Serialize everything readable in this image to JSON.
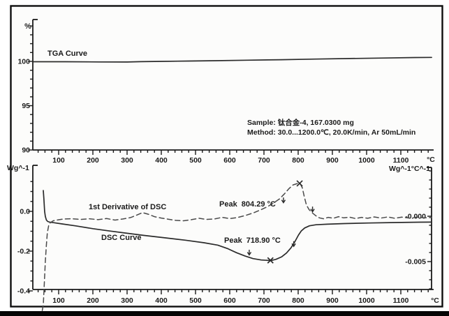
{
  "colors": {
    "frame": "#0d0d0d",
    "axis": "#1a1a1a",
    "curve": "#2b2b2b",
    "derivative": "#4a4a4a",
    "text": "#1a1a1a",
    "background": "#fcfcfb",
    "bottom_bar": "#050505"
  },
  "annotations": {
    "sample_line": "Sample: 钛合金-4, 167.0300 mg",
    "method_line": "Method: 30.0...1200.0℃, 20.0K/min, Ar 50mL/min"
  },
  "chart_data": [
    {
      "type": "line",
      "panel": "top",
      "title": "TGA Curve",
      "xlabel": "°C",
      "ylabel": "%",
      "x_range": [
        25,
        1190
      ],
      "ylim": [
        90,
        104.7
      ],
      "grid": false,
      "x_ticks_major": [
        100,
        200,
        300,
        400,
        500,
        600,
        700,
        800,
        900,
        1000,
        1100
      ],
      "x_tick_minor_step": 20,
      "y_ticks": [
        {
          "v": 100,
          "label": "100"
        },
        {
          "v": 95,
          "label": "95"
        },
        {
          "v": 90,
          "label": "90"
        }
      ],
      "y_tick_minor_step": 1,
      "series": [
        {
          "name": "TGA",
          "units": "%",
          "points": [
            [
              25,
              99.96
            ],
            [
              120,
              99.96
            ],
            [
              220,
              99.94
            ],
            [
              300,
              99.93
            ],
            [
              340,
              99.97
            ],
            [
              400,
              100.0
            ],
            [
              480,
              100.04
            ],
            [
              560,
              100.08
            ],
            [
              650,
              100.13
            ],
            [
              750,
              100.19
            ],
            [
              850,
              100.26
            ],
            [
              950,
              100.32
            ],
            [
              1050,
              100.38
            ],
            [
              1140,
              100.43
            ],
            [
              1190,
              100.45
            ]
          ]
        }
      ]
    },
    {
      "type": "line",
      "panel": "bottom",
      "xlabel": "°C",
      "ylabel_left": "Wg^-1",
      "ylabel_right": "Wg^-1°C^-1",
      "x_range": [
        25,
        1190
      ],
      "ylim_left": [
        -0.4,
        0.232
      ],
      "ylim_right": [
        -0.00808,
        0.0054
      ],
      "grid": false,
      "x_ticks_major": [
        100,
        200,
        300,
        400,
        500,
        600,
        700,
        800,
        900,
        1000,
        1100
      ],
      "x_tick_minor_step": 20,
      "y_ticks_left": [
        {
          "v": 0,
          "label": "0.0"
        },
        {
          "v": -0.2,
          "label": "-0.2"
        },
        {
          "v": -0.4,
          "label": "-0.4"
        }
      ],
      "y_ticks_right": [
        {
          "v": 0,
          "label": "-0.000"
        },
        {
          "v": -0.005,
          "label": "-0.005"
        }
      ],
      "series": [
        {
          "name": "DSC Curve",
          "axis": "left",
          "style": "solid",
          "points": [
            [
              55,
              0.105
            ],
            [
              57,
              0.06
            ],
            [
              59,
              0.0
            ],
            [
              61,
              -0.025
            ],
            [
              64,
              -0.043
            ],
            [
              68,
              -0.051
            ],
            [
              74,
              -0.0545
            ],
            [
              85,
              -0.057
            ],
            [
              110,
              -0.063
            ],
            [
              150,
              -0.073
            ],
            [
              200,
              -0.087
            ],
            [
              250,
              -0.099
            ],
            [
              300,
              -0.11
            ],
            [
              350,
              -0.121
            ],
            [
              410,
              -0.133
            ],
            [
              470,
              -0.145
            ],
            [
              525,
              -0.158
            ],
            [
              565,
              -0.17
            ],
            [
              595,
              -0.188
            ],
            [
              620,
              -0.208
            ],
            [
              645,
              -0.225
            ],
            [
              668,
              -0.2375
            ],
            [
              692,
              -0.2445
            ],
            [
              712,
              -0.2465
            ],
            [
              722,
              -0.2465
            ],
            [
              735,
              -0.2415
            ],
            [
              752,
              -0.2285
            ],
            [
              766,
              -0.2095
            ],
            [
              779,
              -0.1835
            ],
            [
              791,
              -0.1505
            ],
            [
              801,
              -0.119
            ],
            [
              809,
              -0.0985
            ],
            [
              819,
              -0.0835
            ],
            [
              833,
              -0.0725
            ],
            [
              852,
              -0.0675
            ],
            [
              885,
              -0.0645
            ],
            [
              935,
              -0.0615
            ],
            [
              1005,
              -0.0585
            ],
            [
              1085,
              -0.056
            ],
            [
              1155,
              -0.0545
            ],
            [
              1190,
              -0.054
            ]
          ]
        },
        {
          "name": "1st Derivative of DSC",
          "axis": "right",
          "style": "dashed",
          "points": [
            [
              52,
              -0.0104
            ],
            [
              55,
              -0.0098
            ],
            [
              58,
              -0.0075
            ],
            [
              61,
              -0.005
            ],
            [
              64,
              -0.0032
            ],
            [
              67,
              -0.0018
            ],
            [
              71,
              -0.001
            ],
            [
              76,
              -0.0007
            ],
            [
              84,
              -0.0005
            ],
            [
              95,
              -0.00042
            ],
            [
              115,
              -0.0003
            ],
            [
              140,
              -0.00028
            ],
            [
              165,
              -0.00035
            ],
            [
              190,
              -0.00028
            ],
            [
              215,
              -0.00038
            ],
            [
              240,
              -0.00025
            ],
            [
              265,
              -0.00042
            ],
            [
              288,
              -0.0003
            ],
            [
              310,
              -0.00015
            ],
            [
              328,
              0.00012
            ],
            [
              345,
              0.0004
            ],
            [
              362,
              0.00022
            ],
            [
              380,
              -5e-05
            ],
            [
              400,
              -0.0002
            ],
            [
              420,
              -0.00032
            ],
            [
              442,
              -0.00045
            ],
            [
              465,
              -0.0005
            ],
            [
              488,
              -0.00038
            ],
            [
              510,
              -0.00022
            ],
            [
              532,
              -0.00035
            ],
            [
              555,
              -0.0003
            ],
            [
              578,
              -0.00012
            ],
            [
              600,
              -0.00025
            ],
            [
              622,
              -0.00015
            ],
            [
              645,
              8e-05
            ],
            [
              668,
              0.00035
            ],
            [
              690,
              0.0007
            ],
            [
              710,
              0.00105
            ],
            [
              728,
              0.00145
            ],
            [
              745,
              0.0019
            ],
            [
              760,
              0.00248
            ],
            [
              773,
              0.00305
            ],
            [
              785,
              0.00345
            ],
            [
              795,
              0.00358
            ],
            [
              802,
              0.00364
            ],
            [
              806,
              0.0036
            ],
            [
              812,
              0.00315
            ],
            [
              818,
              0.00215
            ],
            [
              824,
              0.00125
            ],
            [
              832,
              0.00072
            ],
            [
              842,
              0.00035
            ],
            [
              852,
              5e-05
            ],
            [
              862,
              -0.00018
            ],
            [
              874,
              -0.00028
            ],
            [
              888,
              -0.00012
            ],
            [
              903,
              -0.00022
            ],
            [
              918,
              -5e-05
            ],
            [
              933,
              -0.00018
            ],
            [
              950,
              -0.0001
            ],
            [
              968,
              -0.00025
            ],
            [
              985,
              -0.00012
            ],
            [
              1003,
              -0.00022
            ],
            [
              1022,
              -8e-05
            ],
            [
              1042,
              -0.0002
            ],
            [
              1062,
              -8e-05
            ],
            [
              1082,
              -0.00022
            ],
            [
              1103,
              -0.0001
            ],
            [
              1125,
              -0.0002
            ],
            [
              1148,
              -0.0001
            ],
            [
              1170,
              -0.00018
            ],
            [
              1190,
              -0.00012
            ]
          ]
        }
      ],
      "peaks": [
        {
          "series": "DSC Curve",
          "label": "Peak  718.90 °C",
          "T": 718.9,
          "value": -0.2465
        },
        {
          "series": "1st Derivative of DSC",
          "label": "Peak  804.29 °C",
          "T": 804.29,
          "value": 0.00365
        }
      ],
      "markers": [
        {
          "type": "x",
          "axis": "left",
          "T": 718.9,
          "v": -0.2465
        },
        {
          "type": "x",
          "axis": "right",
          "T": 804.3,
          "v": 0.00362
        },
        {
          "type": "arrow",
          "axis": "left",
          "T": 657,
          "v": -0.228
        },
        {
          "type": "arrow",
          "axis": "left",
          "T": 787,
          "v": -0.185
        },
        {
          "type": "arrow",
          "axis": "right",
          "T": 757,
          "v": 0.0013
        },
        {
          "type": "arrow",
          "axis": "right",
          "T": 842,
          "v": 0.0003
        }
      ]
    }
  ]
}
